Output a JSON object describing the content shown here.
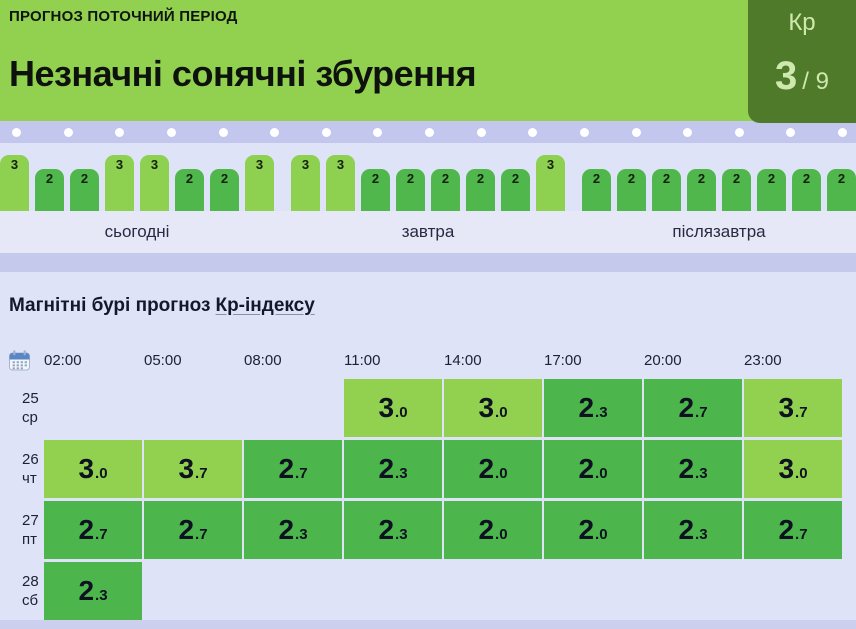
{
  "colors": {
    "header_green": "#92d050",
    "kp_box_green": "#4e7a29",
    "kp_box_text": "#cfe8ae",
    "bar_green_light": "#8ed04f",
    "bar_green_dark": "#4fb74b",
    "cell_green_light": "#92d050",
    "cell_green_dark": "#4cb64c",
    "lavender_bg": "#dfe3f8",
    "dots_strip_bg": "#c3c7ee"
  },
  "header": {
    "kicker": "ПРОГНОЗ ПОТОЧНИЙ ПЕРІОД",
    "title": "Незначні сонячні збурення",
    "kp_label": "Кр",
    "kp_value": "3",
    "kp_max": "/ 9"
  },
  "timeline": {
    "dot_count": 17
  },
  "chart_data": {
    "type": "bar",
    "groups": [
      {
        "label": "сьогодні",
        "values": [
          3,
          2,
          2,
          3,
          3,
          2,
          2,
          3
        ]
      },
      {
        "label": "завтра",
        "values": [
          3,
          3,
          2,
          2,
          2,
          2,
          2,
          3
        ]
      },
      {
        "label": "післязавтра",
        "values": [
          2,
          2,
          2,
          2,
          2,
          2,
          2,
          2
        ]
      }
    ],
    "ylim": [
      0,
      9
    ],
    "legend": "none"
  },
  "forecast_table": {
    "heading_prefix": "Магнітні бурі прогноз",
    "heading_link": "Кр-індексу",
    "times": [
      "02:00",
      "05:00",
      "08:00",
      "11:00",
      "14:00",
      "17:00",
      "20:00",
      "23:00"
    ],
    "rows": [
      {
        "day": "25",
        "weekday": "ср",
        "start_index": 3,
        "values": [
          "3.0",
          "3.0",
          "2.3",
          "2.7",
          "3.7"
        ]
      },
      {
        "day": "26",
        "weekday": "чт",
        "start_index": 0,
        "values": [
          "3.0",
          "3.7",
          "2.7",
          "2.3",
          "2.0",
          "2.0",
          "2.3",
          "3.0"
        ]
      },
      {
        "day": "27",
        "weekday": "пт",
        "start_index": 0,
        "values": [
          "2.7",
          "2.7",
          "2.3",
          "2.3",
          "2.0",
          "2.0",
          "2.3",
          "2.7"
        ]
      },
      {
        "day": "28",
        "weekday": "сб",
        "start_index": 0,
        "values": [
          "2.3"
        ]
      }
    ]
  }
}
